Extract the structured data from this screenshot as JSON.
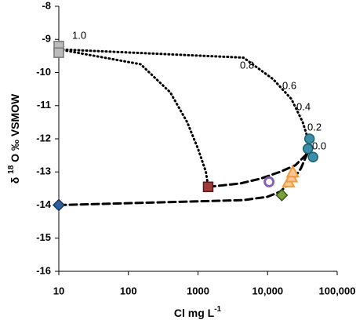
{
  "chart_data": {
    "type": "scatter",
    "xlabel": [
      "Cl mg L",
      "-1"
    ],
    "ylabel": [
      "δ ",
      "18",
      " O ‰ VSMOW"
    ],
    "xscale": "log",
    "xlim": [
      10,
      100000
    ],
    "xticks": [
      10,
      100,
      1000,
      {
        "value": 10000,
        "label": "10,000"
      },
      {
        "value": 100000,
        "label": "100,000"
      }
    ],
    "ylim": [
      -16,
      -8
    ],
    "yticks": [
      -8,
      -9,
      -10,
      -11,
      -12,
      -13,
      -14,
      -15,
      -16
    ],
    "annotations": [
      "1.0",
      "0.8",
      "0.6",
      "0.4",
      "0.2",
      "0.0"
    ],
    "series": [
      {
        "style": "dotted",
        "color": "#000000",
        "x": [
          10,
          150,
          400,
          700,
          1000,
          1300,
          1400
        ],
        "values": [
          -9.3,
          -9.75,
          -10.6,
          -11.5,
          -12.3,
          -13.0,
          -13.45
        ]
      },
      {
        "style": "dotted",
        "color": "#000000",
        "x": [
          10,
          4500,
          12000,
          22000,
          32000,
          38000,
          40000
        ],
        "values": [
          -9.3,
          -9.55,
          -10.2,
          -10.8,
          -11.5,
          -12.0,
          -12.3
        ]
      },
      {
        "style": "dashed",
        "color": "#000000",
        "x": [
          1400,
          4000,
          8000,
          15000,
          25000,
          35000,
          40000
        ],
        "values": [
          -13.45,
          -13.35,
          -13.2,
          -13.0,
          -12.8,
          -12.5,
          -12.3
        ]
      },
      {
        "style": "dashed",
        "color": "#000000",
        "x": [
          10,
          4500,
          10000,
          15000,
          22000,
          30000,
          38000,
          42000
        ],
        "values": [
          -14.0,
          -13.85,
          -13.75,
          -13.6,
          -13.3,
          -12.9,
          -12.4,
          -12.2
        ]
      },
      {
        "marker": "square",
        "color": "#bbbbbb",
        "edge": "#777777",
        "x": [
          10,
          10
        ],
        "values": [
          -9.2,
          -9.4
        ]
      },
      {
        "marker": "circle",
        "color": "#3a8fa8",
        "edge": "#1f5f70",
        "x": [
          40000,
          38000,
          45000
        ],
        "values": [
          -12.0,
          -12.3,
          -12.55
        ]
      },
      {
        "marker": "square",
        "color": "#a0393a",
        "edge": "#5a1a1a",
        "x": [
          1400
        ],
        "values": [
          -13.45
        ]
      },
      {
        "marker": "ring",
        "color": "#8a60b0",
        "edge": "#8a60b0",
        "x": [
          10500
        ],
        "values": [
          -13.3
        ]
      },
      {
        "marker": "triangle",
        "color": "#f7c89a",
        "edge": "#f39a3c",
        "x": [
          20000,
          22000,
          23000
        ],
        "values": [
          -13.3,
          -13.15,
          -13.0
        ]
      },
      {
        "marker": "diamond",
        "color": "#7aa13c",
        "edge": "#3d5a1a",
        "x": [
          16000
        ],
        "values": [
          -13.7
        ]
      },
      {
        "marker": "diamond",
        "color": "#2f5f9c",
        "edge": "#1a3560",
        "x": [
          10
        ],
        "values": [
          -14.0
        ]
      }
    ]
  }
}
